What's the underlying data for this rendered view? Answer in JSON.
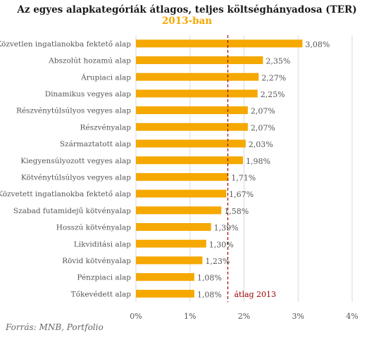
{
  "title": "Az egyes alapkategóriák átlagos, teljes költséghányadosa (TER)",
  "subtitle": "2013-ban",
  "source": "Forrás: MNB, Portfolio",
  "colors": {
    "bar": "#f5a800",
    "average_line": "#a00000"
  },
  "chart_data": {
    "type": "bar",
    "orientation": "horizontal",
    "categories": [
      "Közvetlen ingatlanokba fektető alap",
      "Abszolút hozamú alap",
      "Árupiaci alap",
      "Dinamikus vegyes alap",
      "Részvénytúlsúlyos vegyes alap",
      "Részvényalap",
      "Származtatott alap",
      "Kiegyensúlyozott vegyes alap",
      "Kötvénytúlsúlyos vegyes alap",
      "Közvetett ingatlanokba fektető alap",
      "Szabad futamidejű kötvényalap",
      "Hosszú kötvényalap",
      "Likviditási alap",
      "Rövid kötvényalap",
      "Pénzpiaci alap",
      "Tőkevédett alap"
    ],
    "values": [
      3.08,
      2.35,
      2.27,
      2.25,
      2.07,
      2.07,
      2.03,
      1.98,
      1.71,
      1.67,
      1.58,
      1.39,
      1.3,
      1.23,
      1.08,
      1.08
    ],
    "value_labels": [
      "3,08%",
      "2,35%",
      "2,27%",
      "2,25%",
      "2,07%",
      "2,07%",
      "2,03%",
      "1,98%",
      "1,71%",
      "1,67%",
      "1,58%",
      "1,39%",
      "1,30%",
      "1,23%",
      "1,08%",
      "1,08%"
    ],
    "xlim": [
      0,
      4
    ],
    "xticks": [
      0,
      1,
      2,
      3,
      4
    ],
    "xtick_labels": [
      "0%",
      "1%",
      "2%",
      "3%",
      "4%"
    ],
    "grid": "vertical",
    "average": {
      "value": 1.7,
      "label": "átlag 2013"
    }
  }
}
